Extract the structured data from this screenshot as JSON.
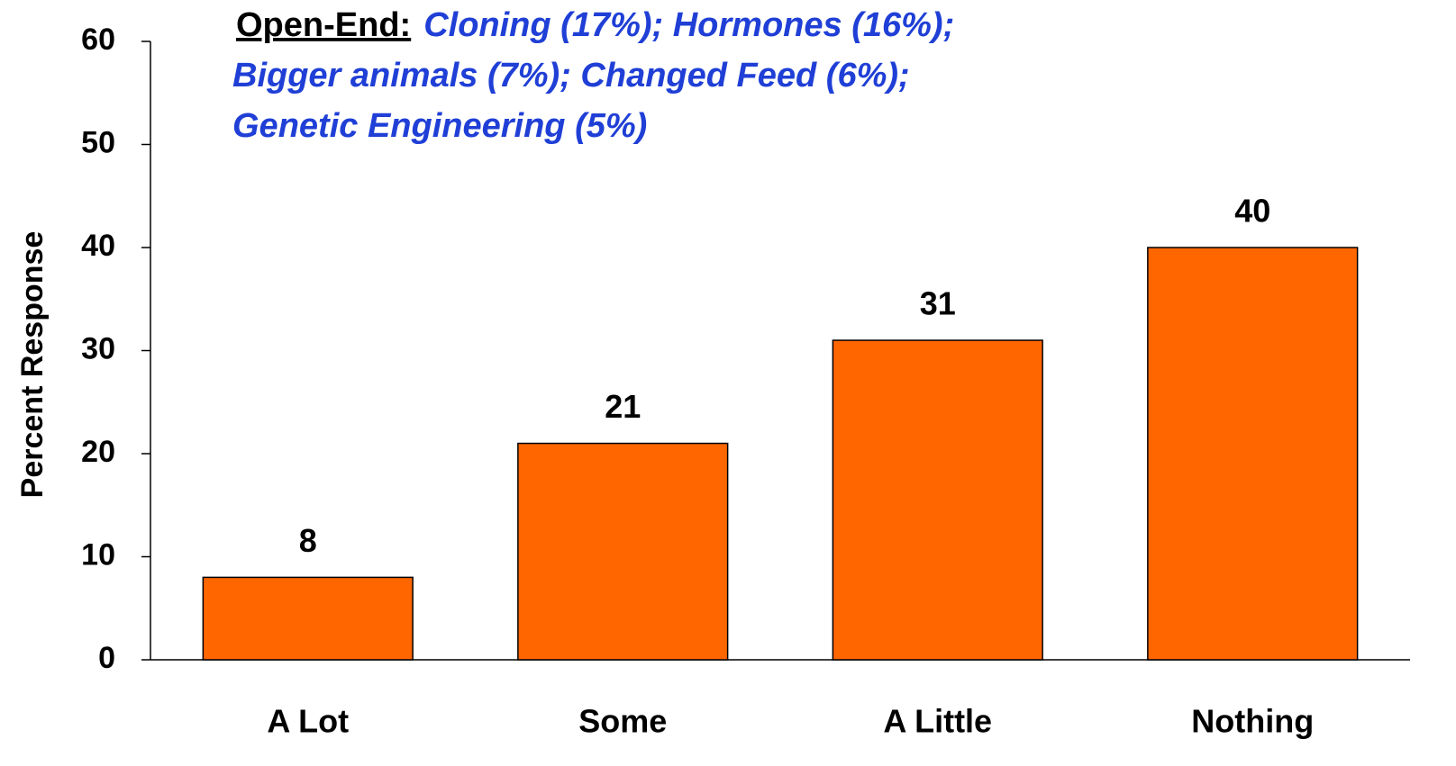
{
  "chart_data": {
    "type": "bar",
    "y_label": "Percent Response",
    "annotation": {
      "label": "Open-End:",
      "lines": [
        "Cloning (17%); Hormones (16%);",
        "Bigger animals (7%); Changed Feed (6%);",
        "Genetic Engineering (5%)"
      ]
    },
    "categories": [
      "A Lot",
      "Some",
      "A Little",
      "Nothing"
    ],
    "values": [
      8,
      21,
      31,
      40
    ],
    "color": "#ff6600",
    "ylim": [
      0,
      60
    ],
    "yticks": [
      0,
      10,
      20,
      30,
      40,
      50,
      60
    ],
    "grid": false
  }
}
